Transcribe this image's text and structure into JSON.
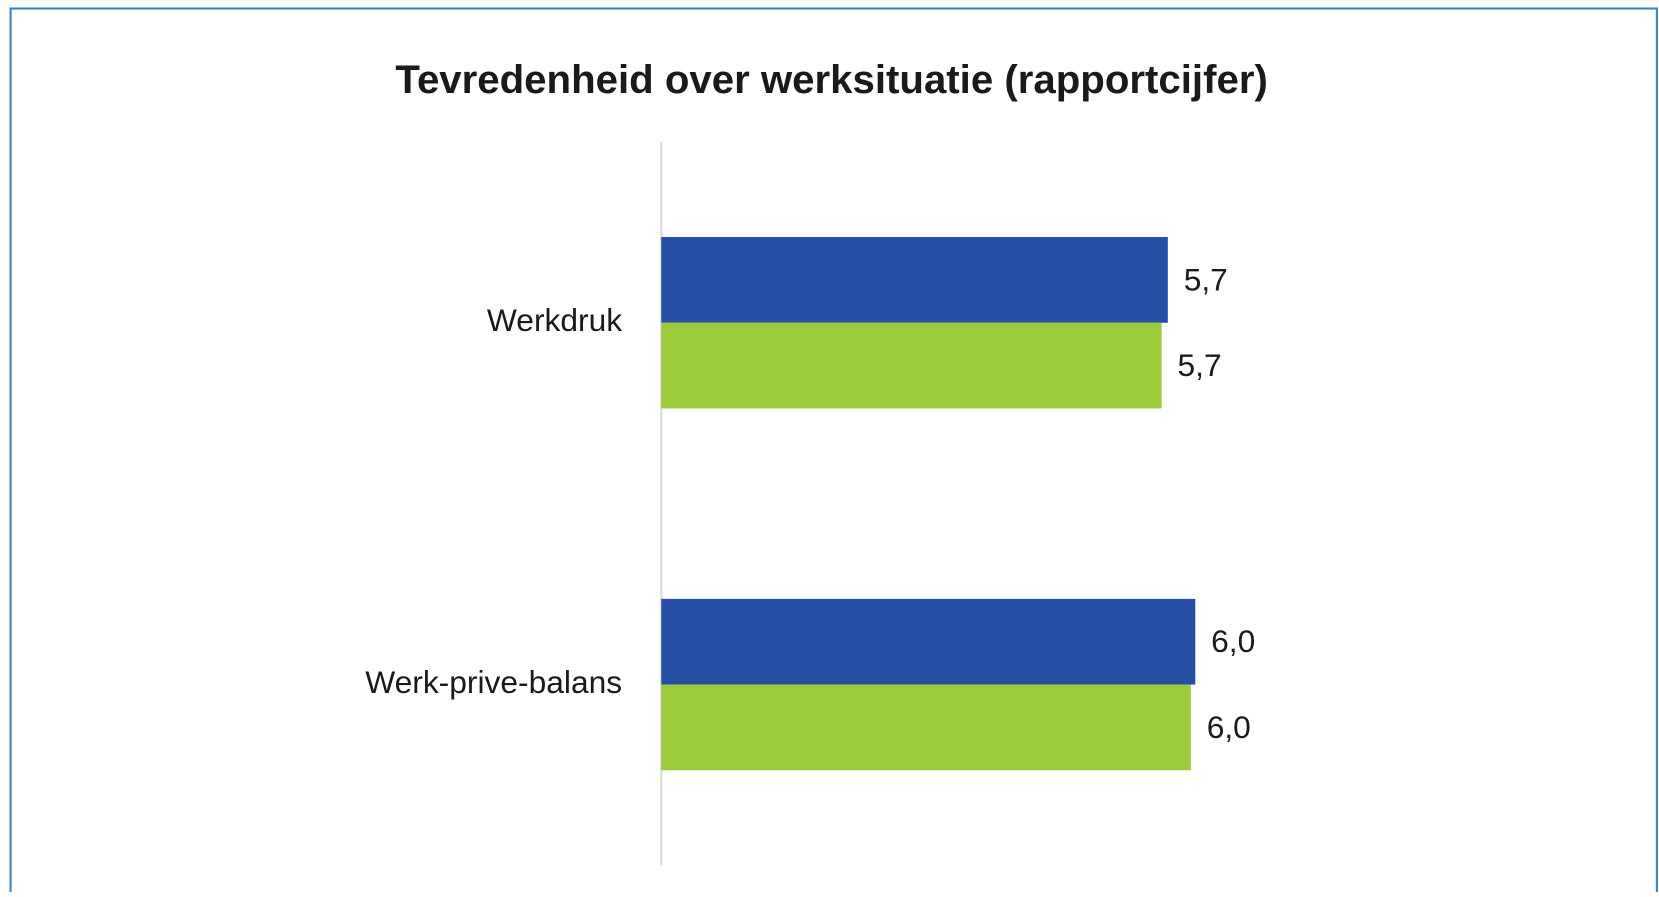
{
  "chart_data": {
    "type": "barh",
    "title": "Tevredenheid over werksituatie (rapportcijfer)",
    "categories": [
      "Werkdruk",
      "Werk-prive-balans"
    ],
    "series": [
      {
        "color": "#244fa3",
        "values": [
          5.72,
          6.03
        ],
        "value_labels": [
          "5,7",
          "6,0"
        ]
      },
      {
        "color": "#9bca3b",
        "values": [
          5.65,
          5.98
        ],
        "value_labels": [
          "5,7",
          "6,0"
        ]
      }
    ],
    "xlim": [
      0,
      10
    ]
  }
}
